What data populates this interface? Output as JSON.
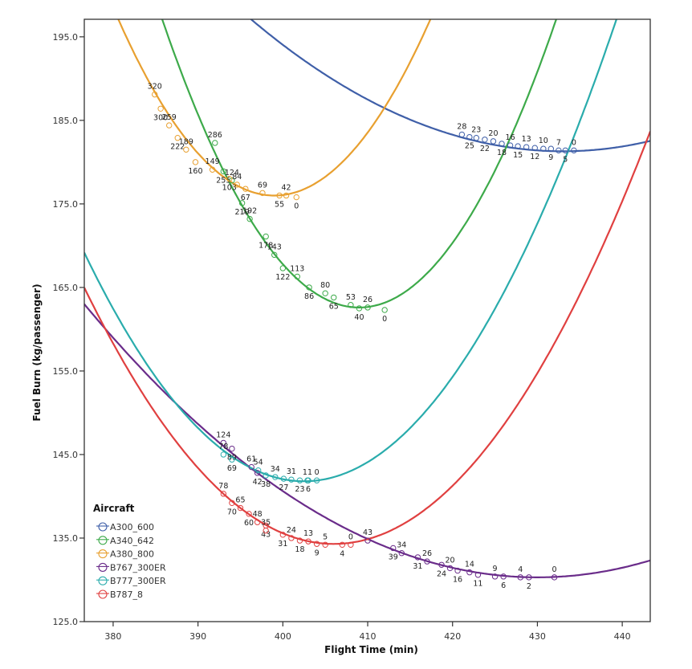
{
  "chart_data": {
    "type": "scatter",
    "title": "",
    "xlabel": "Flight Time (min)",
    "ylabel": "Fuel Burn (kg/passenger)",
    "xlim": [
      376.6,
      443.3
    ],
    "ylim": [
      125.0,
      197.1
    ],
    "xticks": [
      380,
      390,
      400,
      410,
      420,
      430,
      440
    ],
    "yticks": [
      125.0,
      135.0,
      145.0,
      155.0,
      165.0,
      175.0,
      185.0,
      195.0
    ],
    "ytick_labels": [
      "125.0",
      "135.0",
      "145.0",
      "155.0",
      "165.0",
      "175.0",
      "185.0",
      "195.0"
    ],
    "grid": false,
    "legend": {
      "title": "Aircraft",
      "placement": "bottom-left"
    },
    "series": [
      {
        "name": "A300_600",
        "color": "#3f5fa8",
        "fit": {
          "type": "quadratic",
          "vertex_x": 433.0,
          "vertex_y": 181.3,
          "a": 0.0117
        },
        "points": [
          {
            "x": 421.1,
            "y": 183.3,
            "label": "28"
          },
          {
            "x": 422.0,
            "y": 183.0,
            "label": "25"
          },
          {
            "x": 422.8,
            "y": 182.9,
            "label": "23"
          },
          {
            "x": 423.8,
            "y": 182.7,
            "label": "22"
          },
          {
            "x": 424.8,
            "y": 182.5,
            "label": "20"
          },
          {
            "x": 425.8,
            "y": 182.2,
            "label": "18"
          },
          {
            "x": 426.8,
            "y": 182.0,
            "label": "16"
          },
          {
            "x": 427.7,
            "y": 181.9,
            "label": "15"
          },
          {
            "x": 428.7,
            "y": 181.8,
            "label": "13"
          },
          {
            "x": 429.7,
            "y": 181.7,
            "label": "12"
          },
          {
            "x": 430.7,
            "y": 181.6,
            "label": "10"
          },
          {
            "x": 431.6,
            "y": 181.6,
            "label": "9"
          },
          {
            "x": 432.5,
            "y": 181.4,
            "label": "7"
          },
          {
            "x": 433.3,
            "y": 181.4,
            "label": "5"
          },
          {
            "x": 434.3,
            "y": 181.4,
            "label": "0"
          }
        ]
      },
      {
        "name": "A340_642",
        "color": "#3daa4a",
        "fit": {
          "type": "quadratic",
          "vertex_x": 409.0,
          "vertex_y": 162.6,
          "a": 0.064
        },
        "points": [
          {
            "x": 392.0,
            "y": 182.3,
            "label": "286"
          },
          {
            "x": 393.0,
            "y": 178.9,
            "label": "255"
          },
          {
            "x": 394.0,
            "y": 177.8,
            "label": "124"
          },
          {
            "x": 395.2,
            "y": 175.1,
            "label": "219"
          },
          {
            "x": 396.1,
            "y": 173.2,
            "label": "192"
          },
          {
            "x": 398.0,
            "y": 171.1,
            "label": "178"
          },
          {
            "x": 399.0,
            "y": 168.9,
            "label": "143"
          },
          {
            "x": 400.0,
            "y": 167.3,
            "label": "122"
          },
          {
            "x": 401.7,
            "y": 166.3,
            "label": "113"
          },
          {
            "x": 403.1,
            "y": 165.0,
            "label": "86"
          },
          {
            "x": 405.0,
            "y": 164.3,
            "label": "80"
          },
          {
            "x": 406.0,
            "y": 163.8,
            "label": "65"
          },
          {
            "x": 408.0,
            "y": 162.9,
            "label": "53"
          },
          {
            "x": 409.0,
            "y": 162.5,
            "label": "40"
          },
          {
            "x": 410.0,
            "y": 162.6,
            "label": "26"
          },
          {
            "x": 412.0,
            "y": 162.3,
            "label": "0"
          }
        ]
      },
      {
        "name": "A380_800",
        "color": "#e8a030",
        "fit": {
          "type": "quadratic",
          "vertex_x": 399.0,
          "vertex_y": 176.0,
          "a": 0.0624
        },
        "points": [
          {
            "x": 384.9,
            "y": 188.1,
            "label": "320"
          },
          {
            "x": 385.6,
            "y": 186.4,
            "label": "300"
          },
          {
            "x": 386.6,
            "y": 184.4,
            "label": "259"
          },
          {
            "x": 387.6,
            "y": 182.9,
            "label": "222"
          },
          {
            "x": 388.6,
            "y": 181.5,
            "label": "189"
          },
          {
            "x": 389.7,
            "y": 180.0,
            "label": "160"
          },
          {
            "x": 391.7,
            "y": 179.1,
            "label": "149"
          },
          {
            "x": 393.7,
            "y": 178.0,
            "label": "103"
          },
          {
            "x": 394.6,
            "y": 177.3,
            "label": "84"
          },
          {
            "x": 395.6,
            "y": 176.8,
            "label": "67"
          },
          {
            "x": 397.6,
            "y": 176.3,
            "label": "69"
          },
          {
            "x": 399.6,
            "y": 176.0,
            "label": "55"
          },
          {
            "x": 400.4,
            "y": 176.0,
            "label": "42"
          },
          {
            "x": 401.6,
            "y": 175.8,
            "label": "0"
          }
        ]
      },
      {
        "name": "B767_300ER",
        "color": "#6a2c8a",
        "fit": {
          "type": "quadratic",
          "vertex_x": 430.0,
          "vertex_y": 130.3,
          "a": 0.01147
        },
        "points": [
          {
            "x": 393.0,
            "y": 146.4,
            "label": "124"
          },
          {
            "x": 394.0,
            "y": 145.7,
            "label": "89"
          },
          {
            "x": 396.3,
            "y": 143.5,
            "label": "61"
          },
          {
            "x": 397.0,
            "y": 142.8,
            "label": "42"
          },
          {
            "x": 410.0,
            "y": 134.7,
            "label": "43"
          },
          {
            "x": 413.0,
            "y": 133.8,
            "label": "39"
          },
          {
            "x": 414.0,
            "y": 133.2,
            "label": "34"
          },
          {
            "x": 415.9,
            "y": 132.7,
            "label": "31"
          },
          {
            "x": 417.0,
            "y": 132.2,
            "label": "26"
          },
          {
            "x": 418.7,
            "y": 131.8,
            "label": "24"
          },
          {
            "x": 419.7,
            "y": 131.4,
            "label": "20"
          },
          {
            "x": 420.6,
            "y": 131.1,
            "label": "16"
          },
          {
            "x": 422.0,
            "y": 130.9,
            "label": "14"
          },
          {
            "x": 423.0,
            "y": 130.6,
            "label": "11"
          },
          {
            "x": 425.0,
            "y": 130.4,
            "label": "9"
          },
          {
            "x": 426.0,
            "y": 130.4,
            "label": "6"
          },
          {
            "x": 428.0,
            "y": 130.3,
            "label": "4"
          },
          {
            "x": 429.0,
            "y": 130.3,
            "label": "2"
          },
          {
            "x": 432.0,
            "y": 130.3,
            "label": "0"
          }
        ]
      },
      {
        "name": "B777_300ER",
        "color": "#2aacac",
        "fit": {
          "type": "quadratic",
          "vertex_x": 402.5,
          "vertex_y": 141.8,
          "a": 0.0408
        },
        "points": [
          {
            "x": 393.0,
            "y": 145.0,
            "label": "78"
          },
          {
            "x": 394.0,
            "y": 144.4,
            "label": "69"
          },
          {
            "x": 397.1,
            "y": 143.1,
            "label": "54"
          },
          {
            "x": 398.0,
            "y": 142.5,
            "label": "38"
          },
          {
            "x": 399.1,
            "y": 142.3,
            "label": "34"
          },
          {
            "x": 400.1,
            "y": 142.1,
            "label": "27"
          },
          {
            "x": 401.0,
            "y": 142.0,
            "label": "31"
          },
          {
            "x": 402.0,
            "y": 141.9,
            "label": "23"
          },
          {
            "x": 402.9,
            "y": 141.9,
            "label": "11"
          },
          {
            "x": 403.0,
            "y": 141.9,
            "label": "6"
          },
          {
            "x": 404.0,
            "y": 141.9,
            "label": "0"
          }
        ]
      },
      {
        "name": "B787_8",
        "color": "#e04040",
        "fit": {
          "type": "quadratic",
          "vertex_x": 406.0,
          "vertex_y": 134.3,
          "a": 0.0355
        },
        "points": [
          {
            "x": 393.0,
            "y": 140.3,
            "label": "78"
          },
          {
            "x": 394.0,
            "y": 139.2,
            "label": "70"
          },
          {
            "x": 395.0,
            "y": 138.6,
            "label": "65"
          },
          {
            "x": 396.0,
            "y": 137.9,
            "label": "60"
          },
          {
            "x": 397.0,
            "y": 136.9,
            "label": "48"
          },
          {
            "x": 398.0,
            "y": 136.5,
            "label": "43"
          },
          {
            "x": 398.0,
            "y": 135.9,
            "label": "35"
          },
          {
            "x": 400.0,
            "y": 135.4,
            "label": "31"
          },
          {
            "x": 401.0,
            "y": 135.0,
            "label": "24"
          },
          {
            "x": 402.0,
            "y": 134.7,
            "label": "18"
          },
          {
            "x": 403.0,
            "y": 134.6,
            "label": "13"
          },
          {
            "x": 404.0,
            "y": 134.3,
            "label": "9"
          },
          {
            "x": 405.0,
            "y": 134.2,
            "label": "5"
          },
          {
            "x": 407.0,
            "y": 134.2,
            "label": "4"
          },
          {
            "x": 408.0,
            "y": 134.2,
            "label": "0"
          }
        ]
      }
    ]
  }
}
